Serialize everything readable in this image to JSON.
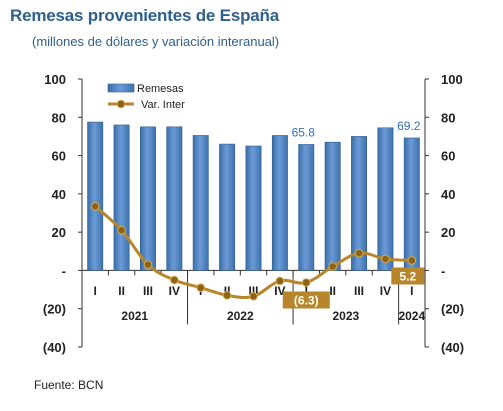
{
  "title": "Remesas provenientes de España",
  "subtitle": "(millones de dólares y variación interanual)",
  "source": "Fuente: BCN",
  "colors": {
    "bar": "#4f81bd",
    "bar_edge": "#2e5c8f",
    "line": "#b8862a",
    "callout": "#b8862a",
    "value_label": "#2f6fb5"
  },
  "chart_data": {
    "type": "bar",
    "categories": [
      "I",
      "II",
      "III",
      "IV",
      "I",
      "II",
      "III",
      "IV",
      "I",
      "II",
      "III",
      "IV",
      "I"
    ],
    "years": [
      {
        "label": "2021",
        "start": 0,
        "end": 3
      },
      {
        "label": "2022",
        "start": 4,
        "end": 7
      },
      {
        "label": "2023",
        "start": 8,
        "end": 11
      },
      {
        "label": "2024",
        "start": 12,
        "end": 12
      }
    ],
    "series": [
      {
        "name": "Remesas",
        "kind": "bar",
        "axis": "left",
        "values": [
          77.5,
          76.0,
          75.0,
          75.0,
          70.5,
          66.0,
          65.0,
          70.5,
          65.8,
          67.0,
          70.0,
          74.5,
          69.2
        ]
      },
      {
        "name": "Var. Inter",
        "kind": "line",
        "axis": "right",
        "values": [
          33.5,
          21.0,
          3.0,
          -5.0,
          -9.0,
          -13.0,
          -13.5,
          -5.5,
          -6.3,
          2.0,
          9.0,
          6.0,
          5.2
        ]
      }
    ],
    "data_labels": [
      {
        "series": 0,
        "index": 8,
        "text": "65.8"
      },
      {
        "series": 0,
        "index": 12,
        "text": "69.2"
      }
    ],
    "callouts": [
      {
        "series": 1,
        "index": 8,
        "text": "(6.3)"
      },
      {
        "series": 1,
        "index": 12,
        "text": "5.2"
      }
    ],
    "ylim": [
      -40,
      100
    ],
    "y_ticks": [
      100,
      80,
      60,
      40,
      20,
      0,
      -20,
      -40
    ],
    "y_tick_labels": [
      "100",
      "80",
      "60",
      "40",
      "20",
      "-",
      "(20)",
      "(40)"
    ],
    "y2_ticks": [
      100,
      80,
      60,
      40,
      20,
      0,
      -20,
      -40
    ],
    "y2_tick_labels": [
      "100",
      "80",
      "60",
      "40",
      "20",
      "-",
      "(20)",
      "(40)"
    ],
    "legend_position": "top-left",
    "grid": false
  }
}
